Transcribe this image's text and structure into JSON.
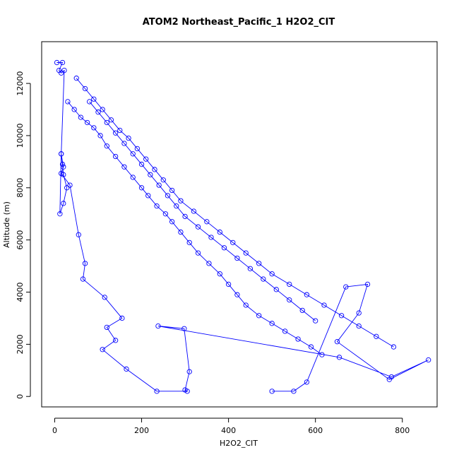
{
  "chart_data": {
    "type": "line",
    "title": "ATOM2 Northeast_Pacific_1 H2O2_CIT",
    "xlabel": "H2O2_CIT",
    "ylabel": "Altitude (m)",
    "xlim": [
      -30,
      880
    ],
    "ylim": [
      -400,
      13600
    ],
    "x_ticks": [
      0,
      200,
      400,
      600,
      800
    ],
    "x_tick_labels": [
      "0",
      "200",
      "400",
      "600",
      "800"
    ],
    "y_ticks": [
      0,
      2000,
      4000,
      6000,
      8000,
      10000,
      12000
    ],
    "y_tick_labels": [
      "0",
      "2000",
      "4000",
      "6000",
      "8000",
      "10000",
      "12000"
    ],
    "grid": false,
    "line_color": "#0000ff",
    "marker": "open-circle",
    "series": [
      {
        "x": [
          5,
          18,
          10,
          15,
          22,
          15,
          18,
          20,
          28,
          20,
          12,
          15,
          20,
          15,
          35,
          55,
          70,
          65,
          115,
          155,
          120,
          140,
          110,
          165,
          235,
          305,
          300,
          310,
          298,
          238,
          655,
          775,
          860,
          770,
          650,
          700,
          720,
          670,
          580,
          550,
          500
        ],
        "y": [
          12800,
          12800,
          12500,
          12400,
          12500,
          9300,
          8900,
          8500,
          8000,
          7400,
          7000,
          9300,
          8800,
          8550,
          8100,
          6200,
          5100,
          4500,
          3800,
          3000,
          2650,
          2150,
          1800,
          1050,
          200,
          200,
          250,
          950,
          2600,
          2700,
          1500,
          750,
          1400,
          650,
          2100,
          3200,
          4300,
          4200,
          550,
          200,
          200
        ]
      },
      {
        "x": [
          30,
          45,
          60,
          75,
          90,
          105,
          120,
          140,
          160,
          180,
          200,
          215,
          235,
          255,
          270,
          290,
          310,
          330,
          355,
          380,
          400,
          420,
          440,
          470,
          500,
          530,
          560,
          590,
          615
        ],
        "y": [
          11300,
          11000,
          10700,
          10500,
          10300,
          10000,
          9600,
          9200,
          8800,
          8400,
          8000,
          7700,
          7300,
          7000,
          6700,
          6300,
          5900,
          5500,
          5100,
          4700,
          4300,
          3900,
          3500,
          3100,
          2800,
          2500,
          2200,
          1900,
          1600
        ]
      },
      {
        "x": [
          50,
          70,
          90,
          110,
          130,
          150,
          170,
          190,
          210,
          230,
          250,
          270,
          290,
          320,
          350,
          380,
          410,
          440,
          470,
          500,
          540,
          580,
          620,
          660,
          700,
          740,
          780
        ],
        "y": [
          12200,
          11800,
          11400,
          11000,
          10600,
          10200,
          9900,
          9500,
          9100,
          8700,
          8300,
          7900,
          7500,
          7100,
          6700,
          6300,
          5900,
          5500,
          5100,
          4700,
          4300,
          3900,
          3500,
          3100,
          2700,
          2300,
          1900
        ]
      },
      {
        "x": [
          80,
          100,
          120,
          140,
          160,
          180,
          200,
          220,
          240,
          260,
          280,
          300,
          330,
          360,
          390,
          420,
          450,
          480,
          510,
          540,
          570,
          600
        ],
        "y": [
          11300,
          10900,
          10500,
          10100,
          9700,
          9300,
          8900,
          8500,
          8100,
          7700,
          7300,
          6900,
          6500,
          6100,
          5700,
          5300,
          4900,
          4500,
          4100,
          3700,
          3300,
          2900
        ]
      }
    ]
  }
}
